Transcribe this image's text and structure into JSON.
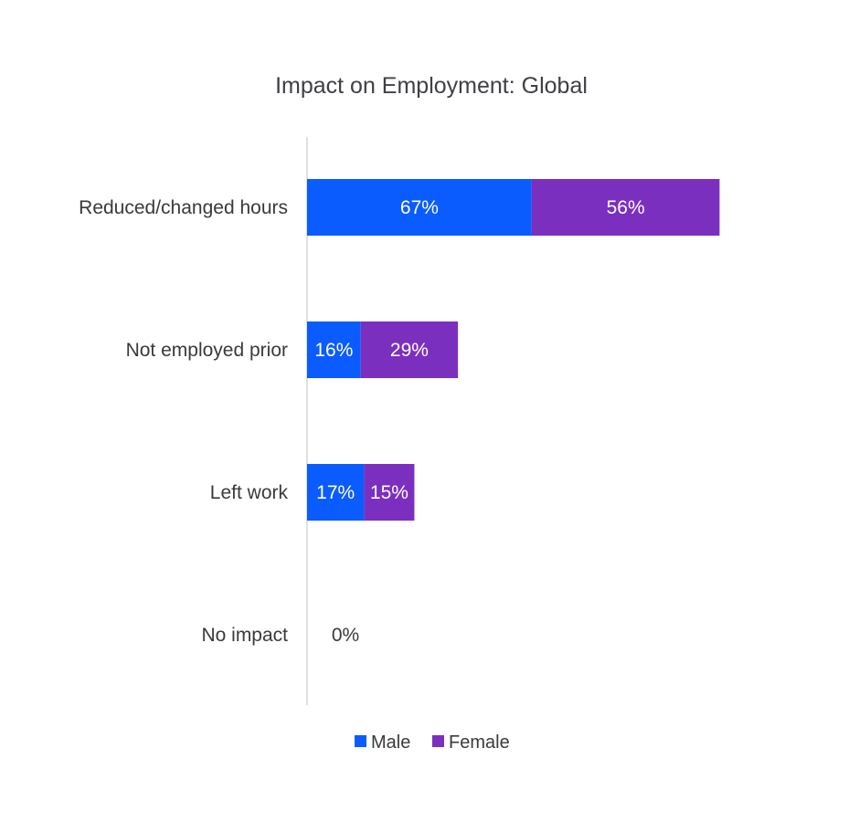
{
  "chart_data": {
    "type": "bar",
    "orientation": "horizontal",
    "stacked": true,
    "title": "Impact on Employment: Global",
    "xlabel": "",
    "ylabel": "",
    "categories": [
      "Reduced/changed hours",
      "Not employed prior",
      "Left work",
      "No impact"
    ],
    "series": [
      {
        "name": "Male",
        "color": "#0a5cff",
        "values": [
          67,
          16,
          17,
          0
        ],
        "labels": [
          "67%",
          "16%",
          "17%",
          "0%"
        ]
      },
      {
        "name": "Female",
        "color": "#7b2fbf",
        "values": [
          56,
          29,
          15,
          0
        ],
        "labels": [
          "56%",
          "29%",
          "15%",
          ""
        ]
      }
    ],
    "xlim": [
      0,
      130
    ],
    "grid": false,
    "legend_position": "bottom"
  }
}
